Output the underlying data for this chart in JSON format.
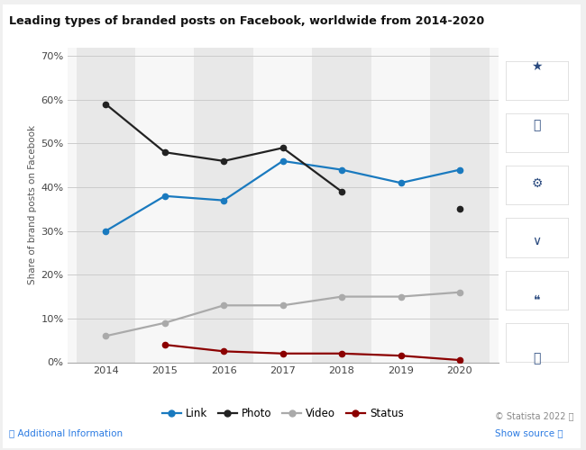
{
  "title": "Leading types of branded posts on Facebook, worldwide from 2014-2020",
  "years": [
    2014,
    2015,
    2016,
    2017,
    2018,
    2019,
    2020
  ],
  "link": [
    30,
    38,
    37,
    46,
    44,
    41,
    44
  ],
  "photo": [
    59,
    48,
    46,
    49,
    39,
    null,
    35
  ],
  "video": [
    6,
    9,
    13,
    13,
    15,
    15,
    16
  ],
  "status": [
    null,
    4,
    2.5,
    2,
    2,
    1.5,
    0.5
  ],
  "ylabel": "Share of brand posts on Facebook",
  "ylim": [
    0,
    72
  ],
  "yticks": [
    0,
    10,
    20,
    30,
    40,
    50,
    60,
    70
  ],
  "ytick_labels": [
    "0%",
    "10%",
    "20%",
    "30%",
    "40%",
    "50%",
    "60%",
    "70%"
  ],
  "bg_color": "#ffffff",
  "outer_bg": "#f0f0f0",
  "plot_bg_color": "#f7f7f7",
  "band_colors_even": "#e8e8e8",
  "band_colors_odd": "#f7f7f7",
  "link_color": "#1a7abf",
  "photo_color": "#222222",
  "video_color": "#aaaaaa",
  "status_color": "#8b0000",
  "legend_labels": [
    "Link",
    "Photo",
    "Video",
    "Status"
  ],
  "footer_left": "Additional Information",
  "footer_right": "© Statista 2022",
  "show_source": "Show source"
}
